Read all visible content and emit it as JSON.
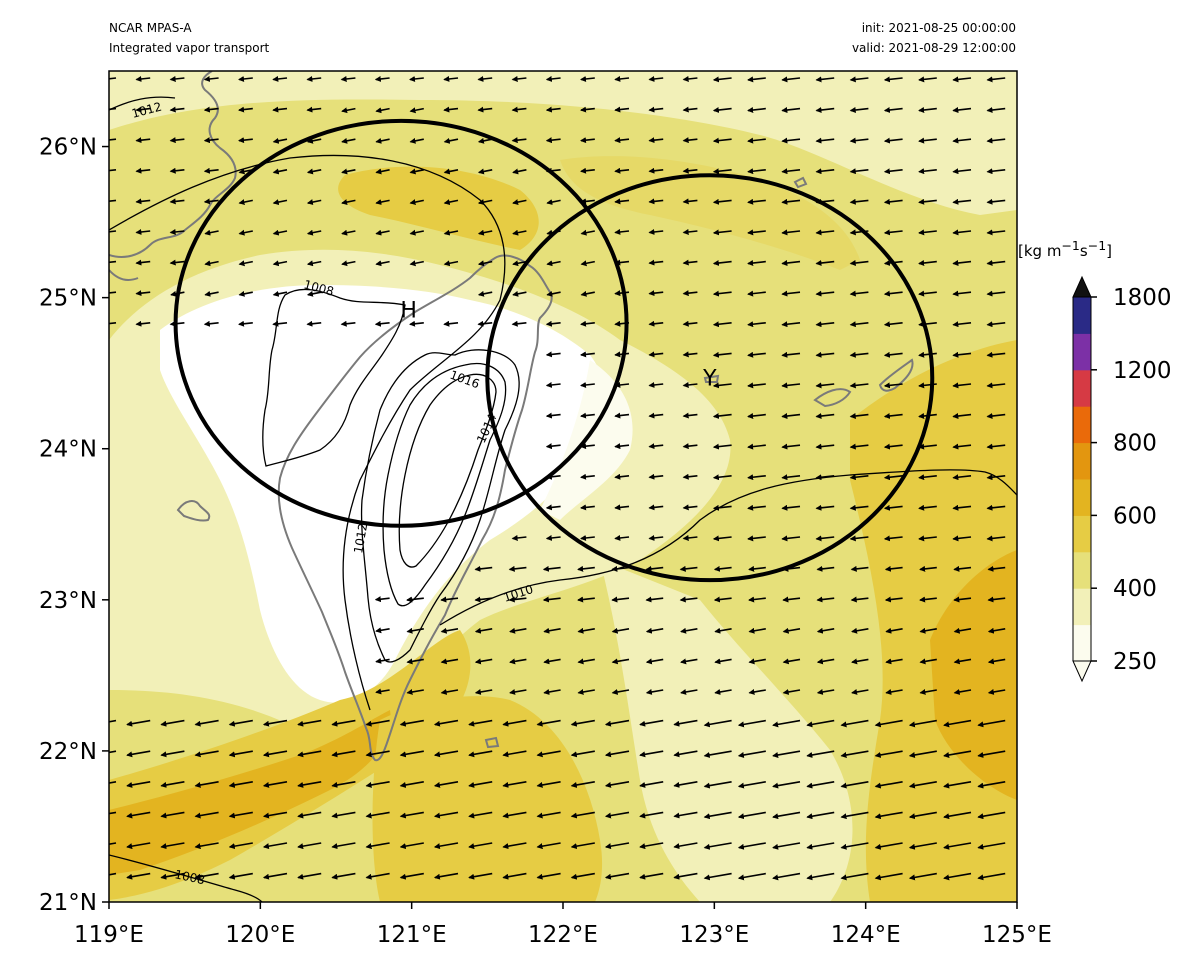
{
  "header": {
    "model": "NCAR MPAS-A",
    "field": "Integrated vapor transport",
    "init": "init: 2021-08-25 00:00:00",
    "valid": "valid: 2021-08-29 12:00:00"
  },
  "axes": {
    "lon_ticks": [
      "119°E",
      "120°E",
      "121°E",
      "122°E",
      "123°E",
      "124°E",
      "125°E"
    ],
    "lat_ticks": [
      "21°N",
      "22°N",
      "23°N",
      "24°N",
      "25°N",
      "26°N"
    ],
    "lon_range": [
      119,
      125
    ],
    "lat_range": [
      21,
      26.5
    ]
  },
  "colorbar": {
    "unit_html": "[kg m<sup>−1</sup>s<sup>−1</sup>]",
    "tick_labels": [
      "250",
      "400",
      "600",
      "800",
      "1200",
      "1800"
    ],
    "levels": [
      250,
      325,
      400,
      500,
      600,
      700,
      800,
      1000,
      1200,
      1500,
      1800
    ],
    "colors": [
      "#fcfcee",
      "#f2f0b8",
      "#e6e07a",
      "#e6cc44",
      "#e3b420",
      "#e3960f",
      "#ea6a0a",
      "#d63a44",
      "#7c30a6",
      "#2a2a86"
    ],
    "extend_color": "#111111"
  },
  "isobar_labels": [
    "1012",
    "1008",
    "1016",
    "1014",
    "1012",
    "1010",
    "1008"
  ],
  "markers": [
    {
      "letter": "H",
      "lon": 120.98,
      "lat": 24.92
    },
    {
      "letter": "Y",
      "lon": 122.97,
      "lat": 24.47
    }
  ],
  "circles": [
    {
      "lon": 120.93,
      "lat": 24.83,
      "rlon": 1.49,
      "rlat": 1.34
    },
    {
      "lon": 122.97,
      "lat": 24.47,
      "rlon": 1.47,
      "rlat": 1.34
    }
  ],
  "chart_data": {
    "type": "map",
    "title": "Integrated vapor transport",
    "source": "NCAR MPAS-A",
    "init": "2021-08-25 00:00:00",
    "valid": "2021-08-29 12:00:00",
    "variable": "Integrated vapor transport",
    "unit": "kg m-1 s-1",
    "contour_levels_mslp": [
      1008,
      1010,
      1012,
      1014,
      1016
    ],
    "region": {
      "lon": [
        119,
        125
      ],
      "lat": [
        21,
        26.5
      ]
    },
    "features": [
      "Taiwan coastline",
      "Ryukyu Islands coastline",
      "isobars",
      "IVT vectors",
      "two circles of radius ~1.4 deg"
    ]
  }
}
